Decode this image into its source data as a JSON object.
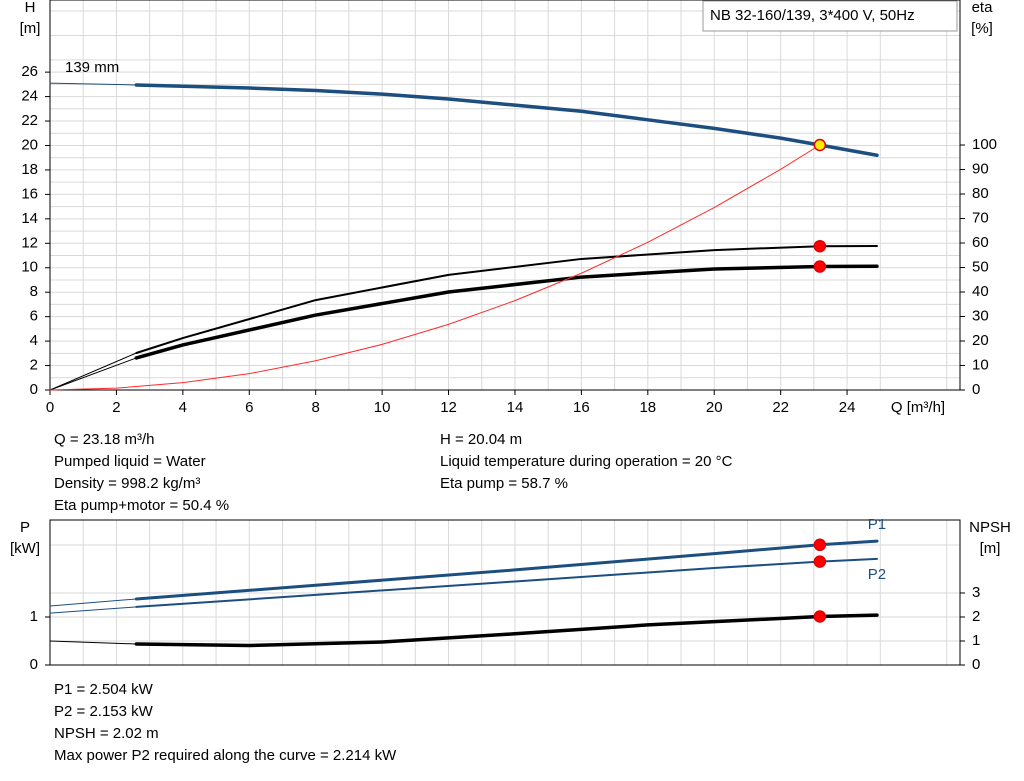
{
  "chart_data": [
    {
      "type": "line",
      "title": "NB 32-160/139, 3*400 V, 50Hz",
      "x_label": "Q [m³/h]",
      "y_label": [
        "H",
        "[m]"
      ],
      "y2_label": [
        "eta",
        "[%]"
      ],
      "xlim": [
        0,
        27.4
      ],
      "xticks": [
        0,
        2,
        4,
        6,
        8,
        10,
        12,
        14,
        16,
        18,
        20,
        22,
        24
      ],
      "ylim": [
        0,
        31.9
      ],
      "yticks": [
        0,
        2,
        4,
        6,
        8,
        10,
        12,
        14,
        16,
        18,
        20,
        22,
        24,
        26
      ],
      "y2lim": [
        0,
        159.2
      ],
      "y2ticks": [
        0,
        10,
        20,
        30,
        40,
        50,
        60,
        70,
        80,
        90,
        100
      ],
      "grid": true,
      "duty_x": 23.18,
      "series": [
        {
          "name": "139 mm",
          "label_at": "start",
          "color": "#1c4e80",
          "width": 3.5,
          "marker": "#ffee00",
          "x": [
            0,
            2.6,
            6,
            8,
            10,
            12,
            14,
            16,
            18,
            20,
            22,
            23.18,
            24.9
          ],
          "values": [
            25.1,
            24.95,
            24.7,
            24.5,
            24.2,
            23.8,
            23.3,
            22.8,
            22.1,
            21.4,
            20.6,
            20.04,
            19.2
          ]
        },
        {
          "axis": "y2",
          "color": "#000000",
          "width": 2,
          "marker": "#ff0000",
          "x": [
            0,
            2.6,
            4,
            8,
            12,
            16,
            20,
            23.18,
            24.9
          ],
          "values": [
            0,
            15.1,
            21.2,
            36.7,
            47,
            53.5,
            57.1,
            58.7,
            58.8
          ]
        },
        {
          "axis": "y2",
          "color": "#000000",
          "width": 3.5,
          "marker": "#ff0000",
          "x": [
            0,
            2.6,
            4,
            8,
            12,
            16,
            20,
            23.18,
            24.9
          ],
          "values": [
            0,
            13.1,
            18.4,
            30.6,
            40,
            46.1,
            49.4,
            50.4,
            50.5
          ]
        },
        {
          "color": "#ff2a2a",
          "width": 1,
          "x": [
            0,
            2,
            4,
            6,
            8,
            10,
            12,
            14,
            16,
            18,
            20,
            22,
            23.18
          ],
          "values": [
            0,
            0.15,
            0.6,
            1.34,
            2.39,
            3.73,
            5.37,
            7.31,
            9.55,
            12.08,
            14.92,
            18.05,
            20.04
          ]
        }
      ],
      "notes": [
        [
          "Q = 23.18 m³/h",
          "Pumped liquid = Water",
          "Density = 998.2 kg/m³",
          "Eta pump+motor = 50.4 %"
        ],
        [
          "H = 20.04 m",
          "Liquid temperature during operation = 20 °C",
          "Eta pump = 58.7 %"
        ]
      ]
    },
    {
      "type": "line",
      "y_label": [
        "P",
        "[kW]"
      ],
      "y2_label": [
        "NPSH",
        "[m]"
      ],
      "xlim": [
        0,
        27.4
      ],
      "ylim": [
        0,
        3.02
      ],
      "yticks": [
        0,
        1
      ],
      "y2lim": [
        0,
        6.04
      ],
      "y2ticks": [
        0,
        1,
        2,
        3
      ],
      "grid": true,
      "duty_x": 23.18,
      "series": [
        {
          "name": "P1",
          "label_at": "end",
          "color": "#1c4e80",
          "width": 3,
          "marker": "#ff0000",
          "x": [
            0,
            2.6,
            8,
            14,
            20,
            23.18,
            24.9
          ],
          "values": [
            1.23,
            1.375,
            1.66,
            1.98,
            2.32,
            2.504,
            2.58
          ]
        },
        {
          "name": "P2",
          "label_at": "end",
          "color": "#1c4e80",
          "width": 2,
          "marker": "#ff0000",
          "x": [
            0,
            2.6,
            8,
            14,
            20,
            23.18,
            24.9
          ],
          "values": [
            1.08,
            1.21,
            1.46,
            1.74,
            2.02,
            2.153,
            2.21
          ]
        },
        {
          "axis": "y2",
          "color": "#000000",
          "width": 3.5,
          "marker": "#ff0000",
          "x": [
            0,
            2.6,
            6,
            10,
            14,
            18,
            23.18,
            24.9
          ],
          "values": [
            1.0,
            0.875,
            0.81,
            0.96,
            1.3,
            1.67,
            2.02,
            2.08
          ]
        }
      ],
      "notes": [
        [
          "P1 = 2.504 kW",
          "P2 = 2.153 kW",
          "NPSH = 2.02 m",
          "Max power P2 required along the curve = 2.214 kW"
        ]
      ]
    }
  ]
}
